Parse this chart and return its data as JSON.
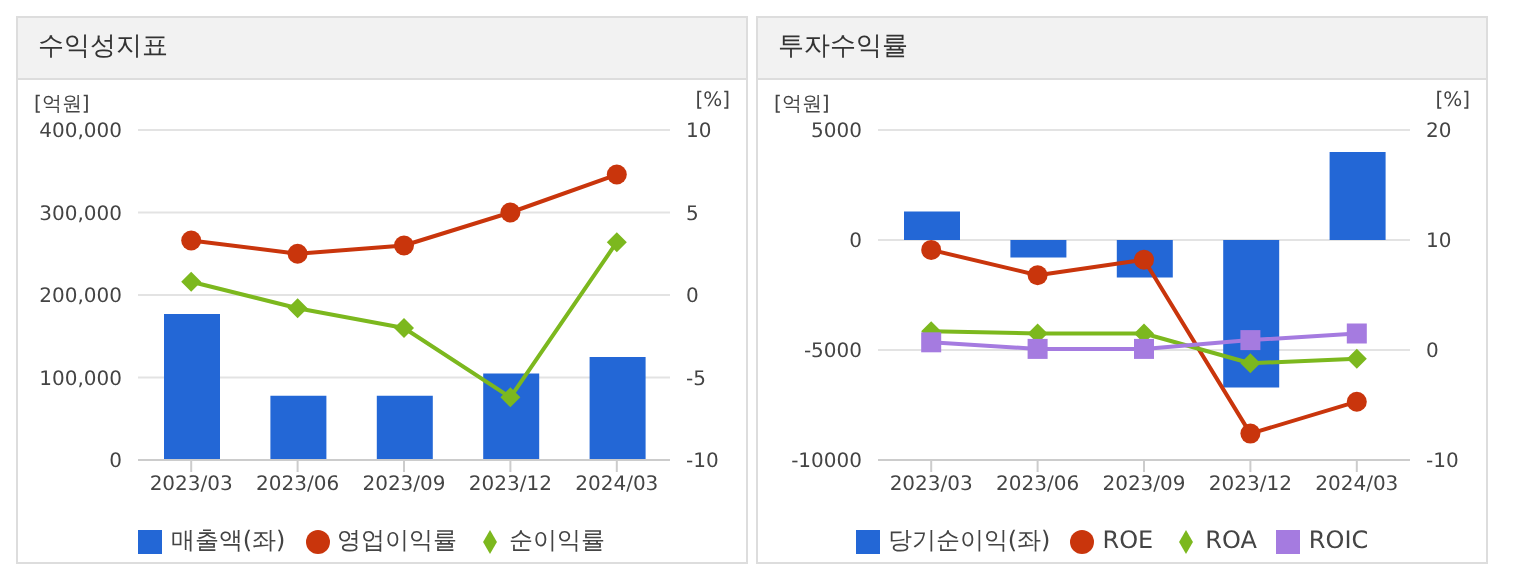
{
  "chart_data": [
    {
      "type": "bar",
      "title": "수익성지표",
      "ylabel": "[억원]",
      "y2label": "[%]",
      "categories": [
        "2023/03",
        "2023/06",
        "2023/09",
        "2023/12",
        "2024/03"
      ],
      "series": [
        {
          "name": "매출액(좌)",
          "color": "#2367d6",
          "values": [
            177000,
            78000,
            78000,
            105000,
            125000
          ]
        },
        {
          "name": "영업이익률",
          "type": "line",
          "axis": "y2",
          "color": "#c9350c",
          "marker": "circle",
          "values": [
            3.3,
            2.5,
            3.0,
            5.0,
            7.3
          ]
        },
        {
          "name": "순이익률",
          "type": "line",
          "axis": "y2",
          "color": "#7cb81e",
          "marker": "diamond",
          "values": [
            0.8,
            -0.8,
            -2.0,
            -6.2,
            3.2
          ]
        }
      ],
      "ylim": [
        0,
        400000
      ],
      "yticks": [
        0,
        {
          "value": 100000,
          "label": "100,000"
        },
        {
          "value": 200000,
          "label": "200,000"
        },
        {
          "value": 300000,
          "label": "300,000"
        },
        {
          "value": 400000,
          "label": "400,000"
        }
      ],
      "y2lim": [
        -10,
        10
      ],
      "y2ticks": [
        -10,
        -5,
        0,
        5,
        10
      ],
      "grid": "y",
      "legend": "bottom"
    },
    {
      "type": "bar",
      "title": "투자수익률",
      "ylabel": "[억원]",
      "y2label": "[%]",
      "categories": [
        "2023/03",
        "2023/06",
        "2023/09",
        "2023/12",
        "2024/03"
      ],
      "series": [
        {
          "name": "당기순이익(좌)",
          "color": "#2367d6",
          "values": [
            1300,
            -800,
            -1700,
            -6700,
            4000
          ]
        },
        {
          "name": "ROE",
          "type": "line",
          "axis": "y2",
          "color": "#c9350c",
          "marker": "circle",
          "values": [
            9.1,
            6.8,
            8.2,
            -7.6,
            -4.7
          ]
        },
        {
          "name": "ROA",
          "type": "line",
          "axis": "y2",
          "color": "#7cb81e",
          "marker": "diamond",
          "values": [
            1.7,
            1.5,
            1.5,
            -1.2,
            -0.8
          ]
        },
        {
          "name": "ROIC",
          "type": "line",
          "axis": "y2",
          "color": "#a57be0",
          "marker": "square",
          "values": [
            0.7,
            0.1,
            0.1,
            0.9,
            1.5
          ]
        }
      ],
      "ylim": [
        -10000,
        5000
      ],
      "yticks": [
        -10000,
        -5000,
        0,
        5000
      ],
      "y2lim": [
        -10,
        20
      ],
      "y2ticks": [
        -10,
        0,
        10,
        20
      ],
      "grid": "y",
      "legend": "bottom"
    }
  ]
}
